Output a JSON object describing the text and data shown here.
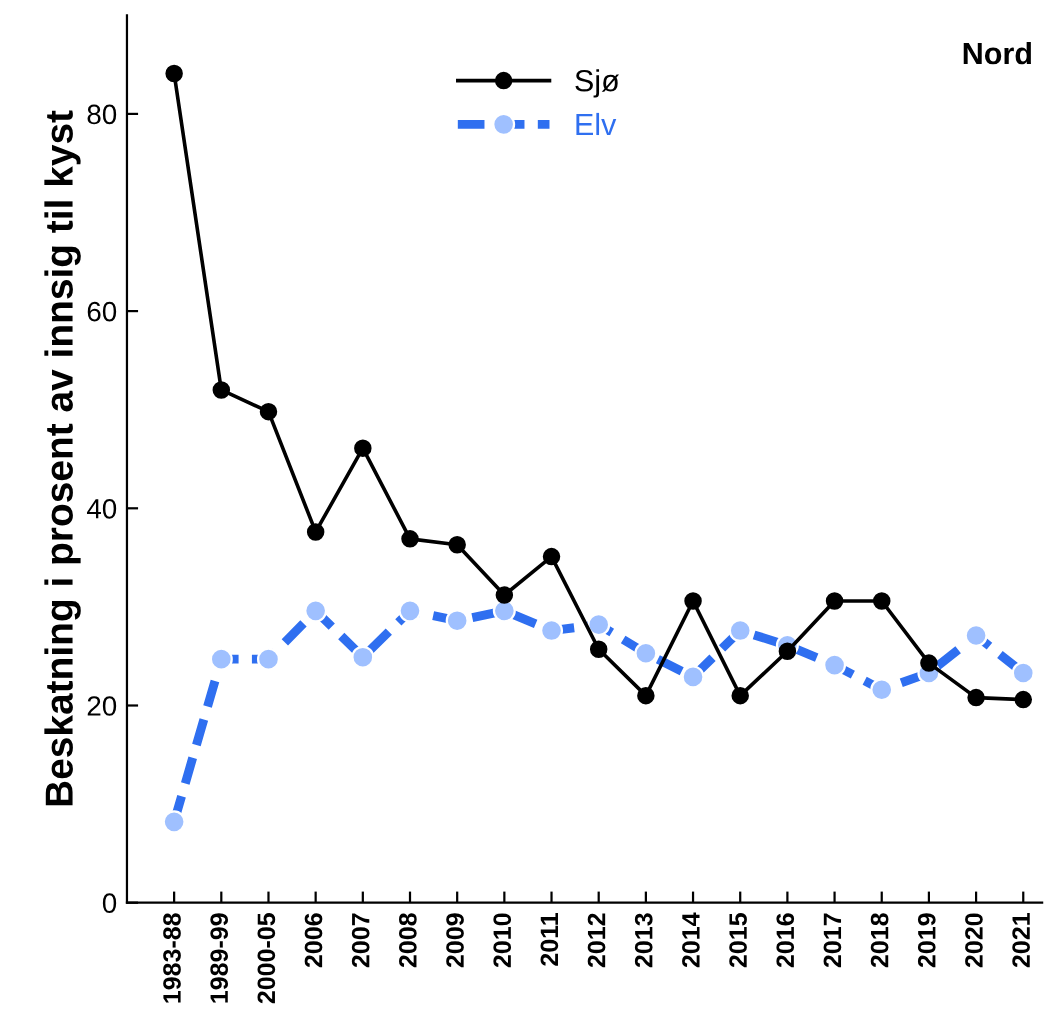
{
  "chart_data": {
    "type": "line",
    "title": "Nord",
    "ylabel": "Beskatning i prosent av innsig til kyst",
    "categories": [
      "1983-88",
      "1989-99",
      "2000-05",
      "2006",
      "2007",
      "2008",
      "2009",
      "2010",
      "2011",
      "2012",
      "2013",
      "2014",
      "2015",
      "2016",
      "2017",
      "2018",
      "2019",
      "2020",
      "2021"
    ],
    "series": [
      {
        "name": "Sjø",
        "color": "#000000",
        "marker": "circle",
        "line_style": "solid",
        "values": [
          84.1,
          52.0,
          49.8,
          37.6,
          46.1,
          36.9,
          36.3,
          31.2,
          35.1,
          25.7,
          21.0,
          30.6,
          21.0,
          25.5,
          30.6,
          30.6,
          24.3,
          20.8,
          20.6
        ]
      },
      {
        "name": "Elv",
        "color": "#2f6ff0",
        "marker": "circle",
        "line_style": "dashed",
        "values": [
          8.2,
          24.7,
          24.7,
          29.6,
          24.9,
          29.6,
          28.6,
          29.6,
          27.6,
          28.2,
          25.3,
          22.9,
          27.6,
          26.1,
          24.1,
          21.6,
          23.3,
          27.1,
          23.3
        ]
      }
    ],
    "ylim": [
      0,
      90
    ],
    "yticks": [
      0,
      20,
      40,
      60,
      80
    ],
    "grid": false,
    "legend": "top"
  }
}
